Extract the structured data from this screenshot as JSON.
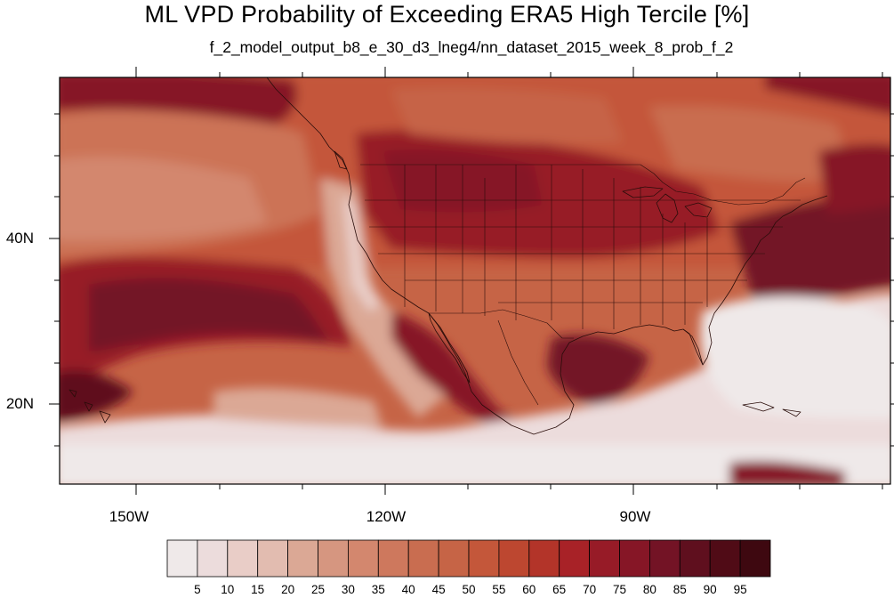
{
  "title": "ML VPD Probability of Exceeding ERA5 High Tercile [%]",
  "subtitle": "f_2_model_output_b8_e_30_d3_lneg4/nn_dataset_2015_week_8_prob_f_2",
  "axes": {
    "lat_labels": [
      "40N",
      "20N"
    ],
    "lon_labels": [
      "150W",
      "120W",
      "90W"
    ]
  },
  "colorbar": {
    "labels": [
      "5",
      "10",
      "15",
      "20",
      "25",
      "30",
      "35",
      "40",
      "45",
      "50",
      "55",
      "60",
      "65",
      "70",
      "75",
      "80",
      "85",
      "90",
      "95"
    ],
    "colors": [
      "#efe9e9",
      "#ecdcdc",
      "#e9cdc7",
      "#e2bcb0",
      "#dba895",
      "#d69680",
      "#d3876e",
      "#ce785d",
      "#c96d50",
      "#c66446",
      "#c4573a",
      "#bd4730",
      "#b33429",
      "#a82227",
      "#971b27",
      "#861626",
      "#731325",
      "#5f0f1e",
      "#500b16",
      "#3e0810"
    ]
  }
}
